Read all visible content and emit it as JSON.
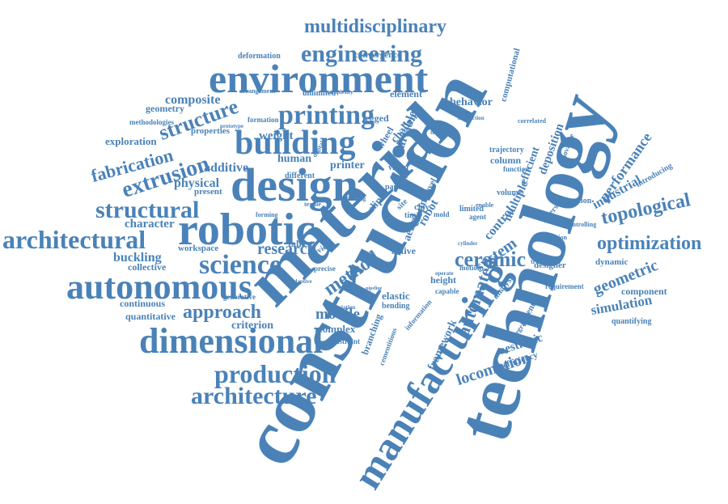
{
  "word_color": "#4a82b8",
  "background": "#ffffff",
  "words": [
    "construction",
    "technology",
    "material",
    "robotic",
    "design",
    "manufacturing",
    "environment",
    "autonomous",
    "dimensional",
    "building",
    "science",
    "architectural",
    "printing",
    "production",
    "architecture",
    "engineering",
    "multidisciplinary",
    "structural",
    "extrusion",
    "fabrication",
    "structure",
    "topological",
    "optimization",
    "ceramic",
    "method",
    "approach",
    "research",
    "automated",
    "locomotion",
    "simulation",
    "geometric",
    "mobile",
    "performance",
    "industrial",
    "character",
    "composite",
    "physical",
    "additive",
    "buckling",
    "workspace",
    "collective",
    "continuous",
    "quantitative",
    "criterion",
    "complex",
    "aesthetic",
    "efficiency",
    "framework",
    "deposition",
    "innovative",
    "efficient",
    "multiple",
    "control",
    "system",
    "behavior",
    "variable",
    "challenge",
    "computational",
    "element",
    "printer",
    "human",
    "weight",
    "exploration",
    "geometry",
    "methodologies",
    "properties",
    "formation",
    "legged",
    "deformation",
    "arrangement",
    "convergence",
    "unlimited",
    "tallest",
    "elastic",
    "casting",
    "aerial",
    "robot",
    "column",
    "trajectory",
    "integration",
    "adaptation",
    "component",
    "dynamic",
    "quantifying",
    "requirement",
    "potential",
    "designer",
    "analysis",
    "diverse",
    "branching",
    "cementitious",
    "constraint",
    "capable",
    "motion",
    "height",
    "limited",
    "agent",
    "volume",
    "paper",
    "visual",
    "agile",
    "different",
    "present",
    "generative",
    "introducing",
    "traditional",
    "controlling",
    "function",
    "correlated",
    "wheel",
    "technique",
    "interaction",
    "complexity",
    "prototype",
    "enable",
    "novel",
    "site",
    "clay",
    "time",
    "mold",
    "slip",
    "active",
    "review",
    "precise",
    "forming",
    "adaptive",
    "textile",
    "digital",
    "pipeline",
    "bending",
    "variation",
    "framing",
    "information",
    "integrate",
    "operate",
    "cylinder"
  ]
}
